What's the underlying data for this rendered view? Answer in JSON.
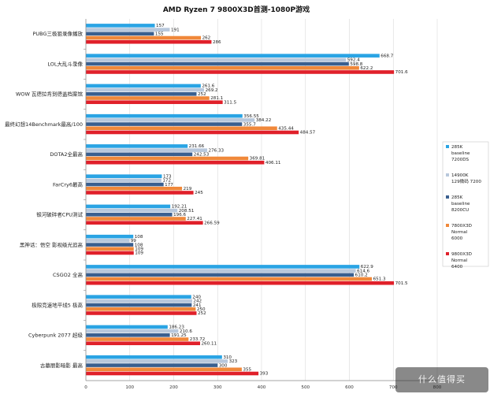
{
  "chart_data": {
    "type": "bar",
    "orientation": "horizontal",
    "title": "AMD Ryzen 7 9800X3D首测-1080P游戏",
    "xlim": [
      0,
      800
    ],
    "x_ticks": [
      0,
      100,
      200,
      300,
      400,
      500,
      600,
      700,
      800
    ],
    "categories": [
      "PUBG三极狙录像播放",
      "LOL大乱斗录像",
      "WOW 瓦德拉肯到德盖档案馆",
      "最终幻想14Benchmark最高/100",
      "DOTA2全最高",
      "FarCry6最高",
      "银河破碎者CPU测试",
      "黑神话：悟空 影视级光追高",
      "CSGO2 全高",
      "极限竞速地平线5 极高",
      "Cyberpunk 2077 超级",
      "古墓丽影暗影 最高"
    ],
    "series": [
      {
        "name": "285K baseline 7200DS",
        "color": "#2aa4e4",
        "values": [
          157,
          668.7,
          261.6,
          356.55,
          231.66,
          173,
          192.21,
          108,
          622.9,
          240,
          186.23,
          310
        ],
        "labels": [
          "157",
          "668.7",
          "261.6",
          "356.55",
          "231.66",
          "173",
          "192.21",
          "108",
          "622.9",
          "240",
          "186.23",
          "310"
        ]
      },
      {
        "name": "14900K 129微码 7200",
        "color": "#b8c8dc",
        "values": [
          191,
          592.4,
          269.2,
          384.22,
          276.33,
          172,
          208.51,
          99,
          614.6,
          242,
          210.6,
          323
        ],
        "labels": [
          "191",
          "592.4",
          "269.2",
          "384.22",
          "276.33",
          "172",
          "208.51",
          "99",
          "614.6",
          "242",
          "210.6",
          "323"
        ]
      },
      {
        "name": "285K baseline 8200CU",
        "color": "#3a5f8f",
        "values": [
          155,
          598.8,
          252,
          355.7,
          242.53,
          177,
          196.6,
          108,
          610.2,
          241,
          191.25,
          300
        ],
        "labels": [
          "155",
          "598.8",
          "252",
          "355.7",
          "242.53",
          "177",
          "196.6",
          "108",
          "610.2",
          "241",
          "191.25",
          "300"
        ]
      },
      {
        "name": "7800X3D Normal 6000",
        "color": "#f0883a",
        "values": [
          262,
          622.2,
          281.1,
          435.44,
          369.81,
          219,
          227.41,
          109,
          651.3,
          250,
          233.72,
          355
        ],
        "labels": [
          "262",
          "622.2",
          "281.1",
          "435.44",
          "369.81",
          "219",
          "227.41",
          "109",
          "651.3",
          "250",
          "233.72",
          "355"
        ]
      },
      {
        "name": "9800X3D Normal 6400",
        "color": "#e0202a",
        "values": [
          286,
          701.6,
          311.5,
          484.57,
          406.11,
          245,
          266.59,
          109,
          701.5,
          252,
          260.11,
          393
        ],
        "labels": [
          "286",
          "701.6",
          "311.5",
          "484.57",
          "406.11",
          "245",
          "266.59",
          "109",
          "701.5",
          "252",
          "260.11",
          "393"
        ]
      }
    ],
    "legend": [
      [
        "285K",
        "baseline",
        "7200DS"
      ],
      [
        "14900K",
        "129微码 7200"
      ],
      [
        "285K",
        "baseline",
        "8200CU"
      ],
      [
        "7800X3D",
        "Normal",
        "6000"
      ],
      [
        "9800X3D",
        "Normal",
        "6400"
      ]
    ],
    "legend_position": "right"
  },
  "watermark": {
    "text": "什么值得买"
  }
}
